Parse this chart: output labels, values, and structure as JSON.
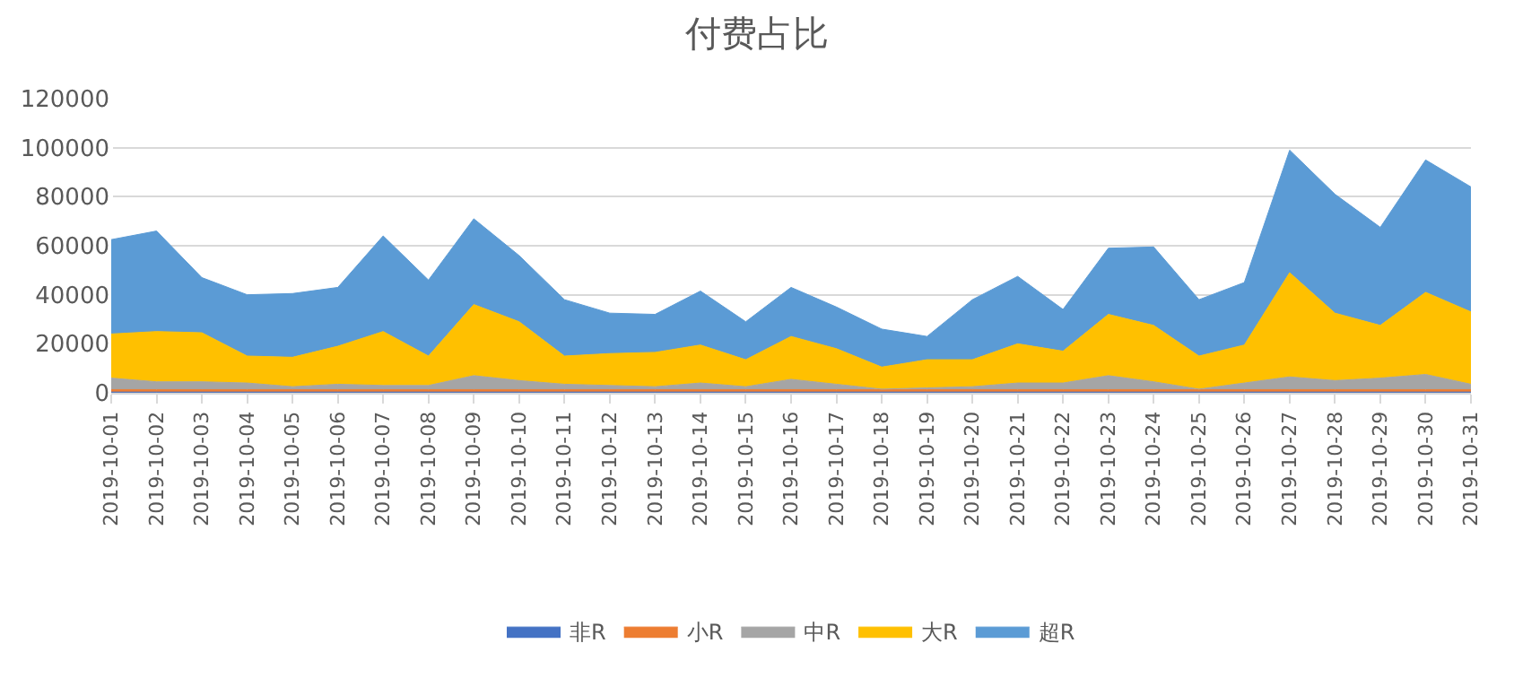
{
  "chart_data": {
    "type": "area",
    "title": "付费占比",
    "stacked": true,
    "grid": "y",
    "legend": "bottom",
    "categories": [
      "2019-10-01",
      "2019-10-02",
      "2019-10-03",
      "2019-10-04",
      "2019-10-05",
      "2019-10-06",
      "2019-10-07",
      "2019-10-08",
      "2019-10-09",
      "2019-10-10",
      "2019-10-11",
      "2019-10-12",
      "2019-10-13",
      "2019-10-14",
      "2019-10-15",
      "2019-10-16",
      "2019-10-17",
      "2019-10-18",
      "2019-10-19",
      "2019-10-20",
      "2019-10-21",
      "2019-10-22",
      "2019-10-23",
      "2019-10-24",
      "2019-10-25",
      "2019-10-26",
      "2019-10-27",
      "2019-10-28",
      "2019-10-29",
      "2019-10-30",
      "2019-10-31"
    ],
    "ylim": [
      0,
      120000
    ],
    "yticks": [
      0,
      20000,
      40000,
      60000,
      80000,
      100000,
      120000
    ],
    "series": [
      {
        "name": "非R",
        "color": "#4472c4",
        "values": [
          300,
          300,
          300,
          300,
          300,
          300,
          300,
          300,
          300,
          300,
          300,
          300,
          300,
          300,
          300,
          300,
          300,
          300,
          300,
          300,
          300,
          300,
          300,
          300,
          300,
          300,
          300,
          300,
          300,
          300,
          300
        ]
      },
      {
        "name": "小R",
        "color": "#ed7d31",
        "values": [
          1000,
          1000,
          1000,
          1000,
          1000,
          1000,
          1000,
          1000,
          1000,
          1000,
          1000,
          1000,
          1000,
          1000,
          1000,
          1000,
          1000,
          1000,
          1000,
          1000,
          1000,
          1000,
          1000,
          1000,
          1000,
          1000,
          1000,
          1000,
          1000,
          1000,
          1000
        ]
      },
      {
        "name": "中R",
        "color": "#a5a5a5",
        "values": [
          4700,
          3200,
          3200,
          2700,
          1200,
          2200,
          1700,
          1700,
          5700,
          3700,
          2200,
          1700,
          1200,
          2700,
          1200,
          4200,
          2200,
          200,
          700,
          1200,
          2700,
          2700,
          5700,
          3200,
          200,
          2700,
          5200,
          3700,
          4700,
          6200,
          2200
        ]
      },
      {
        "name": "大R",
        "color": "#ffc000",
        "values": [
          18000,
          20500,
          20000,
          11000,
          12000,
          15500,
          22000,
          12000,
          29000,
          24000,
          11500,
          13000,
          14000,
          15500,
          11000,
          17500,
          14500,
          9000,
          11500,
          11000,
          16000,
          13000,
          25000,
          23000,
          13500,
          15500,
          42500,
          27500,
          21500,
          33500,
          29500
        ]
      },
      {
        "name": "超R",
        "color": "#5b9bd5",
        "values": [
          38500,
          41000,
          22500,
          25000,
          26000,
          24000,
          39000,
          31000,
          35000,
          27000,
          23000,
          16500,
          15500,
          22000,
          15500,
          20000,
          17000,
          15500,
          9500,
          24500,
          27500,
          17000,
          27000,
          32000,
          23000,
          25500,
          50000,
          48500,
          40000,
          54000,
          51000
        ]
      }
    ]
  }
}
